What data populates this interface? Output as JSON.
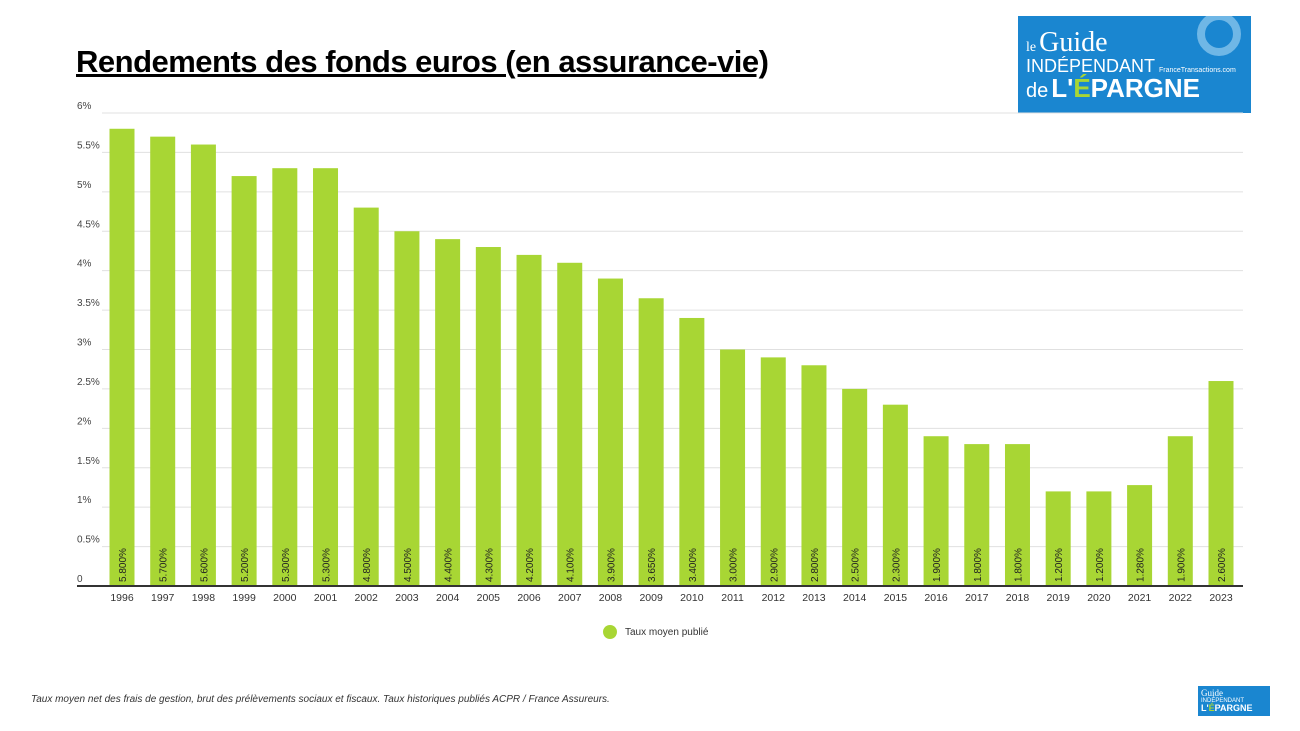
{
  "chart_data": {
    "type": "bar",
    "title": "Rendements des fonds euros (en assurance-vie)",
    "xlabel": "",
    "ylabel": "",
    "categories": [
      "1996",
      "1997",
      "1998",
      "1999",
      "2000",
      "2001",
      "2002",
      "2003",
      "2004",
      "2005",
      "2006",
      "2007",
      "2008",
      "2009",
      "2010",
      "2011",
      "2012",
      "2013",
      "2014",
      "2015",
      "2016",
      "2017",
      "2018",
      "2019",
      "2020",
      "2021",
      "2022",
      "2023"
    ],
    "series": [
      {
        "name": "Taux moyen publié",
        "values": [
          5.8,
          5.7,
          5.6,
          5.2,
          5.3,
          5.3,
          4.8,
          4.5,
          4.4,
          4.3,
          4.2,
          4.1,
          3.9,
          3.65,
          3.4,
          3.0,
          2.9,
          2.8,
          2.5,
          2.3,
          1.9,
          1.8,
          1.8,
          1.2,
          1.2,
          1.28,
          1.9,
          2.6
        ],
        "labels": [
          "5.800%",
          "5.700%",
          "5.600%",
          "5.200%",
          "5.300%",
          "5.300%",
          "4.800%",
          "4.500%",
          "4.400%",
          "4.300%",
          "4.200%",
          "4.100%",
          "3.900%",
          "3.650%",
          "3.400%",
          "3.000%",
          "2.900%",
          "2.800%",
          "2.500%",
          "2.300%",
          "1.900%",
          "1.800%",
          "1.800%",
          "1.200%",
          "1.200%",
          "1.280%",
          "1.900%",
          "2.600%"
        ],
        "color": "#a8d634"
      }
    ],
    "ylim": [
      0,
      6
    ],
    "yticks": [
      "0",
      "0.5%",
      "1%",
      "1.5%",
      "2%",
      "2.5%",
      "3%",
      "3.5%",
      "4%",
      "4.5%",
      "5%",
      "5.5%",
      "6%"
    ],
    "grid": true,
    "legend_position": "bottom"
  },
  "footnote": "Taux moyen net des frais de gestion, brut des prélèvements sociaux et fiscaux. Taux historiques publiés ACPR / France Assureurs.",
  "logo": {
    "line1": "le",
    "line2": "Guide",
    "line3": "INDÉPENDANT",
    "line4": "de",
    "line5": "L'ÉPARGNE",
    "site": "FranceTransactions.com"
  }
}
